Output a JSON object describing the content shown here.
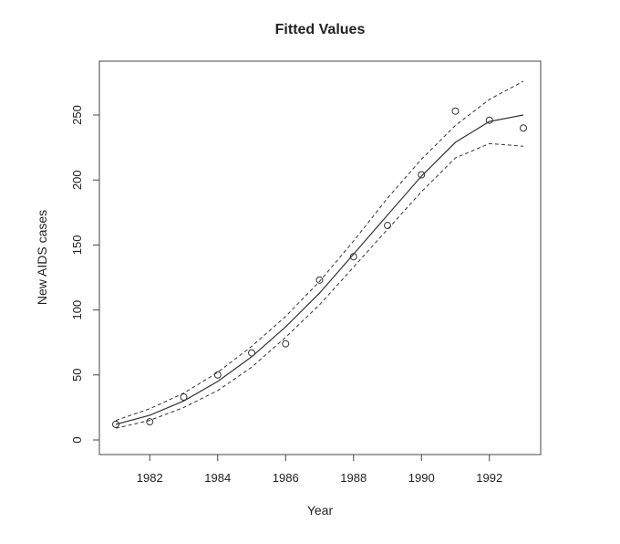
{
  "chart_data": {
    "type": "line",
    "title": "Fitted Values",
    "xlabel": "Year",
    "ylabel": "New AIDS cases",
    "xlim": [
      1981,
      1993
    ],
    "ylim": [
      0,
      275
    ],
    "x_ticks": [
      "1982",
      "1984",
      "1986",
      "1988",
      "1990",
      "1992"
    ],
    "y_ticks": [
      "0",
      "50",
      "100",
      "150",
      "200",
      "250"
    ],
    "grid": false,
    "legend": "none",
    "observed": {
      "x": [
        1981,
        1982,
        1983,
        1984,
        1985,
        1986,
        1987,
        1988,
        1989,
        1990,
        1991,
        1992,
        1993
      ],
      "y": [
        12,
        14,
        33,
        50,
        67,
        74,
        123,
        141,
        165,
        204,
        253,
        246,
        240
      ]
    },
    "fitted": {
      "x": [
        1981,
        1982,
        1983,
        1984,
        1985,
        1986,
        1987,
        1988,
        1989,
        1990,
        1991,
        1992,
        1993
      ],
      "y": [
        12,
        19,
        30,
        45,
        64,
        87,
        113,
        143,
        173,
        203,
        229,
        245,
        250
      ]
    },
    "upper": {
      "x": [
        1981,
        1982,
        1983,
        1984,
        1985,
        1986,
        1987,
        1988,
        1989,
        1990,
        1991,
        1992,
        1993
      ],
      "y": [
        15,
        24,
        36,
        52,
        72,
        95,
        122,
        153,
        186,
        216,
        242,
        262,
        276
      ]
    },
    "lower": {
      "x": [
        1981,
        1982,
        1983,
        1984,
        1985,
        1986,
        1987,
        1988,
        1989,
        1990,
        1991,
        1992,
        1993
      ],
      "y": [
        9,
        15,
        25,
        38,
        56,
        79,
        104,
        133,
        162,
        191,
        217,
        228,
        226
      ]
    }
  }
}
